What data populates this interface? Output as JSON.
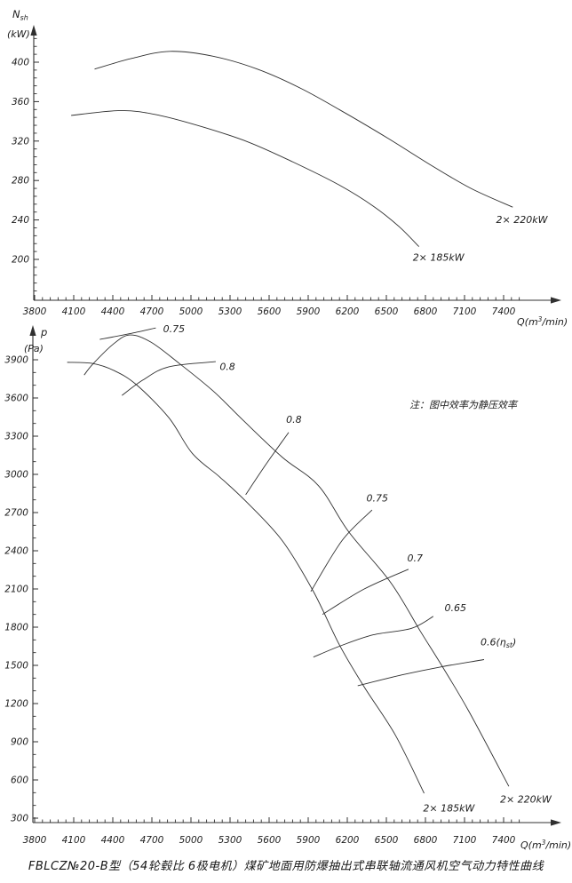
{
  "page": {
    "background": "#ffffff",
    "line_color": "#303030",
    "text_color": "#1c1c1c",
    "caption": "FBLCZ№20-B型（54轮毂比 6极电机）煤矿地面用防爆抽出式串联轴流通风机空气动力特性曲线"
  },
  "chart_data": [
    {
      "id": "shaft-power",
      "type": "line",
      "title": "",
      "xlabel_parts": {
        "pre": "Q(m",
        "sup": "3",
        "post": "/min)"
      },
      "ylabel_main": "N",
      "ylabel_sub": "sh",
      "ylabel_unit": "(kW)",
      "x_ticks": [
        3800,
        4100,
        4400,
        4700,
        5000,
        5300,
        5600,
        5900,
        6200,
        6500,
        6800,
        7100,
        7400
      ],
      "x_minor_step": 60,
      "x_minor_range": [
        3800,
        7560
      ],
      "y_ticks": [
        200,
        240,
        280,
        320,
        360,
        400
      ],
      "y_minor_step": 8,
      "y_minor_range": [
        168,
        424
      ],
      "xlim": [
        3800,
        7560
      ],
      "ylim": [
        163,
        437
      ],
      "grid": false,
      "series": [
        {
          "name": "power-2x220kW",
          "label": "2× 220kW",
          "label_at": [
            7540,
            240
          ],
          "points": [
            [
              4260,
              393
            ],
            [
              4550,
              404
            ],
            [
              4840,
              411
            ],
            [
              5170,
              406
            ],
            [
              5510,
              393
            ],
            [
              5850,
              373
            ],
            [
              6190,
              348
            ],
            [
              6510,
              323
            ],
            [
              6850,
              295
            ],
            [
              7150,
              272
            ],
            [
              7470,
              253
            ]
          ]
        },
        {
          "name": "power-2x185kW",
          "label": "2× 185kW",
          "label_at": [
            6900,
            202
          ],
          "points": [
            [
              4080,
              346
            ],
            [
              4470,
              351
            ],
            [
              4760,
              346
            ],
            [
              5100,
              334
            ],
            [
              5440,
              319
            ],
            [
              5780,
              299
            ],
            [
              6130,
              276
            ],
            [
              6400,
              254
            ],
            [
              6600,
              233
            ],
            [
              6750,
              213
            ]
          ]
        }
      ]
    },
    {
      "id": "static-pressure",
      "type": "line",
      "title": "",
      "xlabel_parts": {
        "pre": "Q(m",
        "sup": "3",
        "post": "/min)"
      },
      "ylabel_main": "p",
      "ylabel_sub": "",
      "ylabel_unit": "(Pa)",
      "x_ticks": [
        3800,
        4100,
        4400,
        4700,
        5000,
        5300,
        5600,
        5900,
        6200,
        6500,
        6800,
        7100,
        7400
      ],
      "x_minor_step": 60,
      "x_minor_range": [
        3800,
        7560
      ],
      "y_ticks": [
        300,
        600,
        900,
        1200,
        1500,
        1800,
        2100,
        2400,
        2700,
        3000,
        3300,
        3600,
        3900
      ],
      "y_minor_step": 100,
      "y_minor_range": [
        400,
        4000
      ],
      "xlim": [
        3800,
        7560
      ],
      "ylim": [
        265,
        4160
      ],
      "grid": false,
      "note": {
        "text": "注：图中效率为静压效率",
        "at": [
          7090,
          3520
        ]
      },
      "series": [
        {
          "name": "pressure-2x220kW",
          "label": "2× 220kW",
          "label_at": [
            7570,
            445
          ],
          "points": [
            [
              4180,
              3780
            ],
            [
              4250,
              3870
            ],
            [
              4400,
              4020
            ],
            [
              4530,
              4095
            ],
            [
              4690,
              4040
            ],
            [
              4900,
              3880
            ],
            [
              5170,
              3655
            ],
            [
              5400,
              3425
            ],
            [
              5700,
              3135
            ],
            [
              5980,
              2910
            ],
            [
              6210,
              2550
            ],
            [
              6530,
              2155
            ],
            [
              6760,
              1770
            ],
            [
              6930,
              1490
            ],
            [
              7130,
              1145
            ],
            [
              7440,
              550
            ]
          ]
        },
        {
          "name": "pressure-2x185kW",
          "label": "2× 185kW",
          "label_at": [
            6980,
            375
          ],
          "points": [
            [
              4050,
              3880
            ],
            [
              4250,
              3870
            ],
            [
              4410,
              3815
            ],
            [
              4580,
              3705
            ],
            [
              4830,
              3445
            ],
            [
              5010,
              3165
            ],
            [
              5220,
              2980
            ],
            [
              5420,
              2790
            ],
            [
              5700,
              2480
            ],
            [
              5940,
              2080
            ],
            [
              6140,
              1660
            ],
            [
              6330,
              1330
            ],
            [
              6570,
              950
            ],
            [
              6790,
              495
            ]
          ]
        },
        {
          "name": "eff-0.75-upper",
          "label": "0.75",
          "label_at": [
            4870,
            4140
          ],
          "points": [
            [
              4300,
              4060
            ],
            [
              4530,
              4105
            ],
            [
              4730,
              4150
            ]
          ]
        },
        {
          "name": "eff-0.8-upper",
          "label": "0.8",
          "label_at": [
            5280,
            3845
          ],
          "points": [
            [
              4470,
              3620
            ],
            [
              4630,
              3740
            ],
            [
              4830,
              3845
            ],
            [
              5190,
              3885
            ]
          ]
        },
        {
          "name": "eff-0.8",
          "label": "0.8",
          "label_at": [
            5790,
            3430
          ],
          "points": [
            [
              5420,
              2840
            ],
            [
              5580,
              3085
            ],
            [
              5750,
              3330
            ]
          ]
        },
        {
          "name": "eff-0.75",
          "label": "0.75",
          "label_at": [
            6430,
            2810
          ],
          "points": [
            [
              5920,
              2080
            ],
            [
              6160,
              2480
            ],
            [
              6390,
              2720
            ]
          ]
        },
        {
          "name": "eff-0.7",
          "label": "0.7",
          "label_at": [
            6720,
            2340
          ],
          "points": [
            [
              6010,
              1900
            ],
            [
              6330,
              2100
            ],
            [
              6670,
              2255
            ]
          ]
        },
        {
          "name": "eff-0.65",
          "label": "0.65",
          "label_at": [
            7030,
            1950
          ],
          "points": [
            [
              5940,
              1565
            ],
            [
              6140,
              1650
            ],
            [
              6400,
              1740
            ],
            [
              6690,
              1790
            ],
            [
              6860,
              1885
            ]
          ]
        },
        {
          "name": "eff-0.6",
          "label_parts": {
            "pre": "0.6(η",
            "sub": "st",
            "post": ")"
          },
          "label_at": [
            7360,
            1680
          ],
          "points": [
            [
              6280,
              1340
            ],
            [
              6620,
              1425
            ],
            [
              6930,
              1490
            ],
            [
              7250,
              1545
            ]
          ]
        }
      ]
    }
  ]
}
